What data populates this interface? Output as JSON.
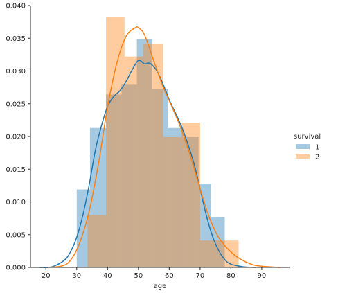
{
  "chart_data": {
    "type": "histogram",
    "xlabel": "age",
    "ylabel": "",
    "xlim": [
      15,
      99
    ],
    "ylim": [
      0,
      0.04
    ],
    "xticks": [
      20,
      30,
      40,
      50,
      60,
      70,
      80,
      90
    ],
    "yticks": [
      0.0,
      0.005,
      0.01,
      0.015,
      0.02,
      0.025,
      0.03,
      0.035,
      0.04
    ],
    "ytick_labels": [
      "0.000",
      "0.005",
      "0.010",
      "0.015",
      "0.020",
      "0.025",
      "0.030",
      "0.035",
      "0.040"
    ],
    "grid": false,
    "legend": {
      "title": "survival",
      "placement": "right",
      "entries": [
        "1",
        "2"
      ]
    },
    "series": [
      {
        "name": "1",
        "color": "#1f77b4",
        "bins": [
          {
            "x0": 30.0,
            "x1": 34.3,
            "y": 0.0119
          },
          {
            "x0": 34.3,
            "x1": 39.5,
            "y": 0.0213
          },
          {
            "x0": 39.5,
            "x1": 44.5,
            "y": 0.0264
          },
          {
            "x0": 44.5,
            "x1": 49.5,
            "y": 0.028
          },
          {
            "x0": 49.5,
            "x1": 54.5,
            "y": 0.0349
          },
          {
            "x0": 54.5,
            "x1": 59.5,
            "y": 0.0273
          },
          {
            "x0": 59.5,
            "x1": 64.5,
            "y": 0.0213
          },
          {
            "x0": 64.5,
            "x1": 69.5,
            "y": 0.0199
          },
          {
            "x0": 69.5,
            "x1": 73.5,
            "y": 0.0128
          },
          {
            "x0": 73.5,
            "x1": 78.0,
            "y": 0.0077
          }
        ],
        "kde_x": [
          18,
          22,
          26,
          28,
          30,
          32,
          34,
          36,
          38,
          40,
          42,
          44,
          46,
          48,
          50,
          52,
          53,
          54,
          56,
          58,
          60,
          62,
          64,
          66,
          68,
          70,
          72,
          74,
          76,
          78,
          80,
          84,
          88
        ],
        "kde_y": [
          0.0,
          0.0001,
          0.0011,
          0.0024,
          0.0046,
          0.008,
          0.0125,
          0.0178,
          0.0216,
          0.0246,
          0.0261,
          0.027,
          0.0284,
          0.0302,
          0.0316,
          0.0311,
          0.0312,
          0.0311,
          0.03,
          0.028,
          0.0256,
          0.0236,
          0.0215,
          0.0189,
          0.0159,
          0.012,
          0.008,
          0.0048,
          0.0026,
          0.0012,
          0.0005,
          0.0001,
          0.0
        ]
      },
      {
        "name": "2",
        "color": "#ff7f0e",
        "bins": [
          {
            "x0": 33.5,
            "x1": 39.5,
            "y": 0.008
          },
          {
            "x0": 39.5,
            "x1": 45.5,
            "y": 0.0383
          },
          {
            "x0": 45.5,
            "x1": 51.5,
            "y": 0.0322
          },
          {
            "x0": 51.5,
            "x1": 58.0,
            "y": 0.0341
          },
          {
            "x0": 58.0,
            "x1": 64.0,
            "y": 0.0199
          },
          {
            "x0": 64.0,
            "x1": 70.0,
            "y": 0.0221
          },
          {
            "x0": 70.0,
            "x1": 76.5,
            "y": 0.0041
          },
          {
            "x0": 76.5,
            "x1": 82.5,
            "y": 0.0041
          }
        ],
        "kde_x": [
          20,
          25,
          28,
          31,
          34,
          37,
          40,
          43,
          46,
          49,
          50,
          52,
          55,
          58,
          61,
          64,
          67,
          70,
          73,
          76,
          79,
          82,
          85,
          88,
          92,
          96
        ],
        "kde_y": [
          0.0,
          0.0002,
          0.0011,
          0.0038,
          0.0085,
          0.0157,
          0.0245,
          0.0312,
          0.0353,
          0.0366,
          0.0366,
          0.0355,
          0.0315,
          0.0276,
          0.0244,
          0.021,
          0.0168,
          0.012,
          0.0076,
          0.0046,
          0.0028,
          0.0016,
          0.0008,
          0.0003,
          0.0001,
          0.0
        ]
      }
    ]
  }
}
